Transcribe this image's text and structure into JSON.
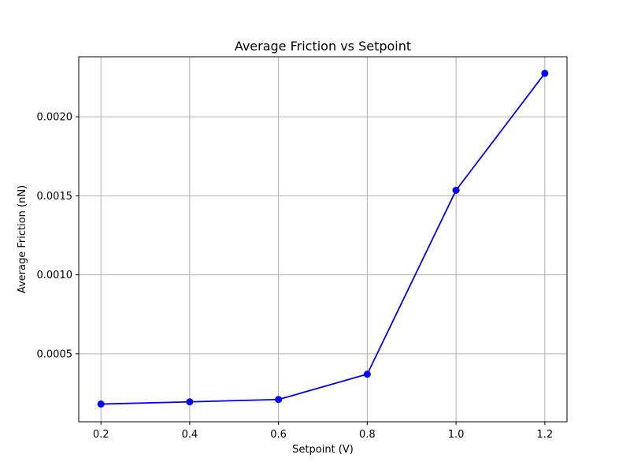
{
  "chart_data": {
    "type": "line",
    "title": "Average Friction vs Setpoint",
    "xlabel": "Setpoint (V)",
    "ylabel": "Average Friction (nN)",
    "grid": true,
    "legend": "none",
    "xlim": [
      0.15,
      1.25
    ],
    "ylim": [
      7e-05,
      0.00238
    ],
    "x_ticks": [
      0.2,
      0.4,
      0.6,
      0.8,
      1.0,
      1.2
    ],
    "x_tick_labels": [
      "0.2",
      "0.4",
      "0.6",
      "0.8",
      "1.0",
      "1.2"
    ],
    "y_ticks": [
      0.0005,
      0.001,
      0.0015,
      0.002
    ],
    "y_tick_labels": [
      "0.0005",
      "0.0010",
      "0.0015",
      "0.0020"
    ],
    "series": [
      {
        "color": "#0000ff",
        "marker": "circle",
        "x": [
          0.2,
          0.4,
          0.6,
          0.8,
          1.0,
          1.2
        ],
        "y": [
          0.000182,
          0.000196,
          0.000211,
          0.000371,
          0.001535,
          0.002275
        ]
      }
    ]
  }
}
